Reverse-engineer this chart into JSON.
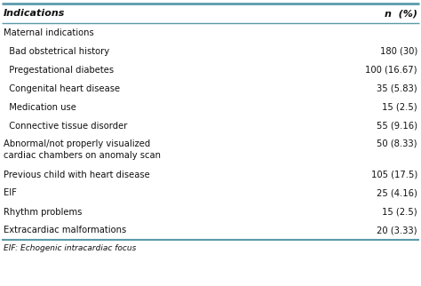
{
  "header": [
    "Indications",
    "n  (%)"
  ],
  "rows": [
    {
      "text": "Maternal indications",
      "value": "",
      "indent": 0,
      "bold": false
    },
    {
      "text": "  Bad obstetrical history",
      "value": "180 (30)",
      "indent": 1,
      "bold": false
    },
    {
      "text": "  Pregestational diabetes",
      "value": "100 (16.67)",
      "indent": 1,
      "bold": false
    },
    {
      "text": "  Congenital heart disease",
      "value": "35 (5.83)",
      "indent": 1,
      "bold": false
    },
    {
      "text": "  Medication use",
      "value": "15 (2.5)",
      "indent": 1,
      "bold": false
    },
    {
      "text": "  Connective tissue disorder",
      "value": "55 (9.16)",
      "indent": 1,
      "bold": false
    },
    {
      "text": "Abnormal/not properly visualized\ncardiac chambers on anomaly scan",
      "value": "50 (8.33)",
      "indent": 0,
      "bold": false
    },
    {
      "text": "Previous child with heart disease",
      "value": "105 (17.5)",
      "indent": 0,
      "bold": false
    },
    {
      "text": "EIF",
      "value": "25 (4.16)",
      "indent": 0,
      "bold": false
    },
    {
      "text": "Rhythm problems",
      "value": "15 (2.5)",
      "indent": 0,
      "bold": false
    },
    {
      "text": "Extracardiac malformations",
      "value": "20 (3.33)",
      "indent": 0,
      "bold": false
    }
  ],
  "footer": "EIF: Echogenic intracardiac focus",
  "bg_color": "#ffffff",
  "border_color": "#5b9aaa",
  "text_color": "#111111",
  "header_fontsize": 8.0,
  "body_fontsize": 7.2,
  "footer_fontsize": 6.5,
  "fig_width": 4.74,
  "fig_height": 3.22,
  "dpi": 100
}
